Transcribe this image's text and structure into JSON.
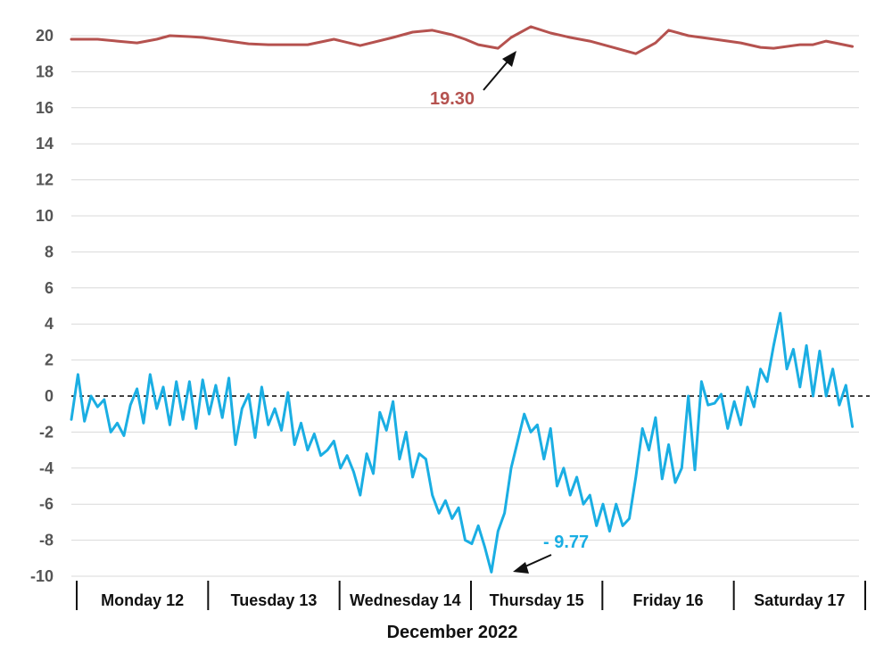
{
  "chart_data": {
    "type": "line",
    "title": "",
    "xlabel": "December 2022",
    "ylabel": "",
    "ylim": [
      -10,
      20
    ],
    "yticks": [
      20,
      18,
      16,
      14,
      12,
      10,
      8,
      6,
      4,
      2,
      0,
      -2,
      -4,
      -6,
      -8,
      -10
    ],
    "grid": true,
    "zero_line": "dashed",
    "categories": [
      "Monday 12",
      "Tuesday 13",
      "Wednesday 14",
      "Thursday 15",
      "Friday 16",
      "Saturday 17"
    ],
    "series": [
      {
        "color": "#B5524F",
        "x": [
          0,
          0.2,
          0.35,
          0.5,
          0.65,
          0.75,
          0.9,
          1.0,
          1.2,
          1.35,
          1.5,
          1.8,
          2.0,
          2.2,
          2.45,
          2.6,
          2.75,
          2.9,
          3.0,
          3.1,
          3.25,
          3.35,
          3.5,
          3.65,
          3.8,
          3.95,
          4.05,
          4.15,
          4.3,
          4.45,
          4.55,
          4.7,
          4.9,
          5.1,
          5.25,
          5.35,
          5.55,
          5.65,
          5.75,
          5.95
        ],
        "values": [
          19.8,
          19.8,
          19.7,
          19.6,
          19.8,
          20.0,
          19.95,
          19.9,
          19.7,
          19.55,
          19.5,
          19.5,
          19.8,
          19.45,
          19.9,
          20.2,
          20.3,
          20.05,
          19.8,
          19.5,
          19.3,
          19.9,
          20.5,
          20.15,
          19.9,
          19.7,
          19.5,
          19.3,
          19.0,
          19.6,
          20.3,
          20.0,
          19.8,
          19.6,
          19.35,
          19.3,
          19.5,
          19.5,
          19.7,
          19.4
        ]
      },
      {
        "color": "#1AAEE3",
        "x": [
          0.0,
          0.05,
          0.1,
          0.15,
          0.2,
          0.25,
          0.3,
          0.35,
          0.4,
          0.45,
          0.5,
          0.55,
          0.6,
          0.65,
          0.7,
          0.75,
          0.8,
          0.85,
          0.9,
          0.95,
          1.0,
          1.05,
          1.1,
          1.15,
          1.2,
          1.25,
          1.3,
          1.35,
          1.4,
          1.45,
          1.5,
          1.55,
          1.6,
          1.65,
          1.7,
          1.75,
          1.8,
          1.85,
          1.9,
          1.95,
          2.0,
          2.05,
          2.1,
          2.15,
          2.2,
          2.25,
          2.3,
          2.35,
          2.4,
          2.45,
          2.5,
          2.55,
          2.6,
          2.65,
          2.7,
          2.75,
          2.8,
          2.85,
          2.9,
          2.95,
          3.0,
          3.05,
          3.1,
          3.15,
          3.2,
          3.25,
          3.3,
          3.35,
          3.4,
          3.45,
          3.5,
          3.55,
          3.6,
          3.65,
          3.7,
          3.75,
          3.8,
          3.85,
          3.9,
          3.95,
          4.0,
          4.05,
          4.1,
          4.15,
          4.2,
          4.25,
          4.3,
          4.35,
          4.4,
          4.45,
          4.5,
          4.55,
          4.6,
          4.65,
          4.7,
          4.75,
          4.8,
          4.85,
          4.9,
          4.95,
          5.0,
          5.05,
          5.1,
          5.15,
          5.2,
          5.25,
          5.3,
          5.35,
          5.4,
          5.45,
          5.5,
          5.55,
          5.6,
          5.65,
          5.7,
          5.75,
          5.8,
          5.85,
          5.9,
          5.95
        ],
        "values": [
          -1.3,
          1.2,
          -1.4,
          0.0,
          -0.6,
          -0.2,
          -2.0,
          -1.5,
          -2.2,
          -0.5,
          0.4,
          -1.5,
          1.2,
          -0.7,
          0.5,
          -1.6,
          0.8,
          -1.3,
          0.8,
          -1.8,
          0.9,
          -1.0,
          0.6,
          -1.2,
          1.0,
          -2.7,
          -0.7,
          0.1,
          -2.3,
          0.5,
          -1.6,
          -0.7,
          -1.9,
          0.2,
          -2.7,
          -1.5,
          -3.0,
          -2.1,
          -3.3,
          -3.0,
          -2.5,
          -4.0,
          -3.3,
          -4.2,
          -5.5,
          -3.2,
          -4.3,
          -0.9,
          -1.9,
          -0.3,
          -3.5,
          -2.0,
          -4.5,
          -3.2,
          -3.5,
          -5.5,
          -6.5,
          -5.8,
          -6.8,
          -6.2,
          -8.0,
          -8.2,
          -7.2,
          -8.4,
          -9.77,
          -7.5,
          -6.5,
          -4.0,
          -2.5,
          -1.0,
          -2.0,
          -1.6,
          -3.5,
          -1.8,
          -5.0,
          -4.0,
          -5.5,
          -4.5,
          -6.0,
          -5.5,
          -7.2,
          -6.0,
          -7.5,
          -6.0,
          -7.2,
          -6.8,
          -4.5,
          -1.8,
          -3.0,
          -1.2,
          -4.6,
          -2.7,
          -4.8,
          -4.0,
          0.0,
          -4.1,
          0.8,
          -0.5,
          -0.4,
          0.1,
          -1.8,
          -0.3,
          -1.6,
          0.5,
          -0.6,
          1.5,
          0.8,
          2.8,
          4.6,
          1.5,
          2.6,
          0.5,
          2.8,
          0.0,
          2.5,
          0.0,
          1.5,
          -0.5,
          0.6,
          -1.7
        ]
      }
    ],
    "annotations": [
      {
        "text": "19.30",
        "x": 3.2,
        "y": 19.3,
        "color": "#B5524F"
      },
      {
        "text": "- 9.77",
        "x": 3.2,
        "y": -9.77,
        "color": "#1AAEE3"
      }
    ]
  }
}
